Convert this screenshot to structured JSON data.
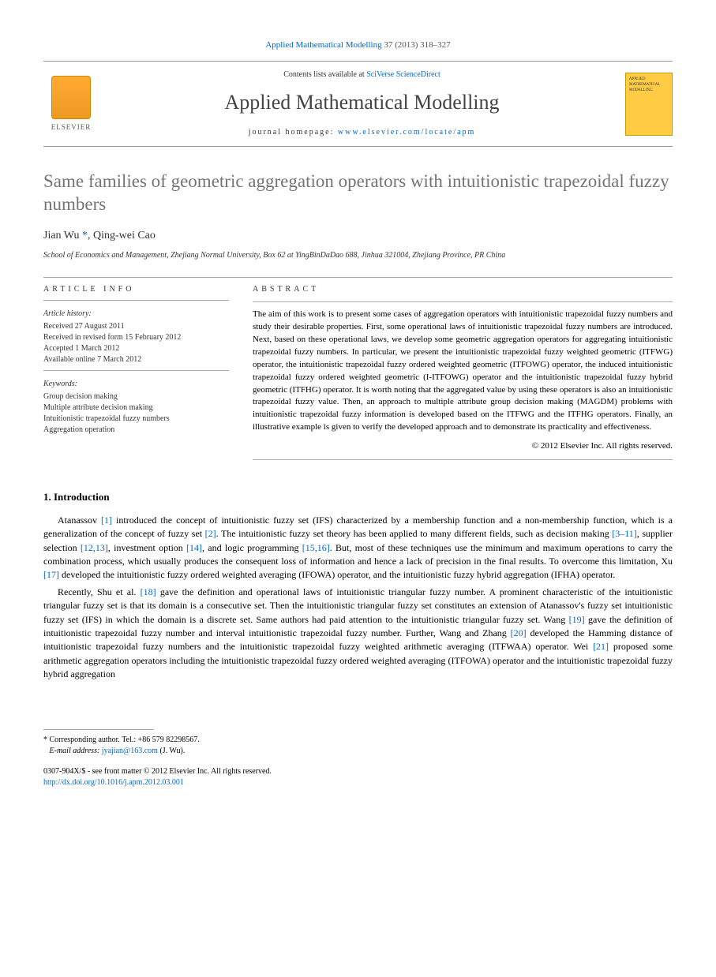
{
  "header": {
    "citation_prefix": "Applied Mathematical Modelling",
    "citation_vol": "37 (2013) 318–327",
    "contents_prefix": "Contents lists available at",
    "contents_link": "SciVerse ScienceDirect",
    "journal_name": "Applied Mathematical Modelling",
    "homepage_prefix": "journal homepage:",
    "homepage_url": "www.elsevier.com/locate/apm",
    "elsevier_label": "ELSEVIER",
    "cover_text": "APPLIED MATHEMATICAL MODELLING"
  },
  "article": {
    "title": "Same families of geometric aggregation operators with intuitionistic trapezoidal fuzzy numbers",
    "authors_html_1": "Jian Wu",
    "authors_star": "*",
    "authors_html_2": ", Qing-wei Cao",
    "affiliation": "School of Economics and Management, Zhejiang Normal University, Box 62 at YingBinDaDao 688, Jinhua 321004, Zhejiang Province, PR China"
  },
  "info": {
    "label": "ARTICLE INFO",
    "history_label": "Article history:",
    "history": [
      "Received 27 August 2011",
      "Received in revised form 15 February 2012",
      "Accepted 1 March 2012",
      "Available online 7 March 2012"
    ],
    "keywords_label": "Keywords:",
    "keywords": [
      "Group decision making",
      "Multiple attribute decision making",
      "Intuitionistic trapezoidal fuzzy numbers",
      "Aggregation operation"
    ]
  },
  "abstract": {
    "label": "ABSTRACT",
    "text": "The aim of this work is to present some cases of aggregation operators with intuitionistic trapezoidal fuzzy numbers and study their desirable properties. First, some operational laws of intuitionistic trapezoidal fuzzy numbers are introduced. Next, based on these operational laws, we develop some geometric aggregation operators for aggregating intuitionistic trapezoidal fuzzy numbers. In particular, we present the intuitionistic trapezoidal fuzzy weighted geometric (ITFWG) operator, the intuitionistic trapezoidal fuzzy ordered weighted geometric (ITFOWG) operator, the induced intuitionistic trapezoidal fuzzy ordered weighted geometric (I-ITFOWG) operator and the intuitionistic trapezoidal fuzzy hybrid geometric (ITFHG) operator. It is worth noting that the aggregated value by using these operators is also an intuitionistic trapezoidal fuzzy value. Then, an approach to multiple attribute group decision making (MAGDM) problems with intuitionistic trapezoidal fuzzy information is developed based on the ITFWG and the ITFHG operators. Finally, an illustrative example is given to verify the developed approach and to demonstrate its practicality and effectiveness.",
    "copyright": "© 2012 Elsevier Inc. All rights reserved."
  },
  "intro": {
    "heading": "1. Introduction",
    "p1_a": "Atanassov ",
    "p1_ref1": "[1]",
    "p1_b": " introduced the concept of intuitionistic fuzzy set (IFS) characterized by a membership function and a non-membership function, which is a generalization of the concept of fuzzy set ",
    "p1_ref2": "[2]",
    "p1_c": ". The intuitionistic fuzzy set theory has been applied to many different fields, such as decision making ",
    "p1_ref3": "[3–11]",
    "p1_d": ", supplier selection ",
    "p1_ref4": "[12,13]",
    "p1_e": ", investment option ",
    "p1_ref5": "[14]",
    "p1_f": ", and logic programming ",
    "p1_ref6": "[15,16]",
    "p1_g": ". But, most of these techniques use the minimum and maximum operations to carry the combination process, which usually produces the consequent loss of information and hence a lack of precision in the final results. To overcome this limitation, Xu ",
    "p1_ref7": "[17]",
    "p1_h": " developed the intuitionistic fuzzy ordered weighted averaging (IFOWA) operator, and the intuitionistic fuzzy hybrid aggregation (IFHA) operator.",
    "p2_a": "Recently, Shu et al. ",
    "p2_ref1": "[18]",
    "p2_b": " gave the definition and operational laws of intuitionistic triangular fuzzy number. A prominent characteristic of the intuitionistic triangular fuzzy set is that its domain is a consecutive set. Then the intuitionistic triangular fuzzy set constitutes an extension of Atanassov's fuzzy set intuitionistic fuzzy set (IFS) in which the domain is a discrete set. Same authors had paid attention to the intuitionistic triangular fuzzy set. Wang ",
    "p2_ref2": "[19]",
    "p2_c": " gave the definition of intuitionistic trapezoidal fuzzy number and interval intuitionistic trapezoidal fuzzy number. Further, Wang and Zhang ",
    "p2_ref3": "[20]",
    "p2_d": " developed the Hamming distance of intuitionistic trapezoidal fuzzy numbers and the intuitionistic trapezoidal fuzzy weighted arithmetic averaging (ITFWAA) operator. Wei ",
    "p2_ref4": "[21]",
    "p2_e": " proposed some arithmetic aggregation operators including the intuitionistic trapezoidal fuzzy ordered weighted averaging (ITFOWA) operator and the intuitionistic trapezoidal fuzzy hybrid aggregation"
  },
  "footer": {
    "corr_label": "* Corresponding author. Tel.: +86 579 82298567.",
    "email_label": "E-mail address:",
    "email": "jyajian@163.com",
    "email_suffix": "(J. Wu).",
    "issn": "0307-904X/$ - see front matter © 2012 Elsevier Inc. All rights reserved.",
    "doi": "http://dx.doi.org/10.1016/j.apm.2012.03.001"
  }
}
